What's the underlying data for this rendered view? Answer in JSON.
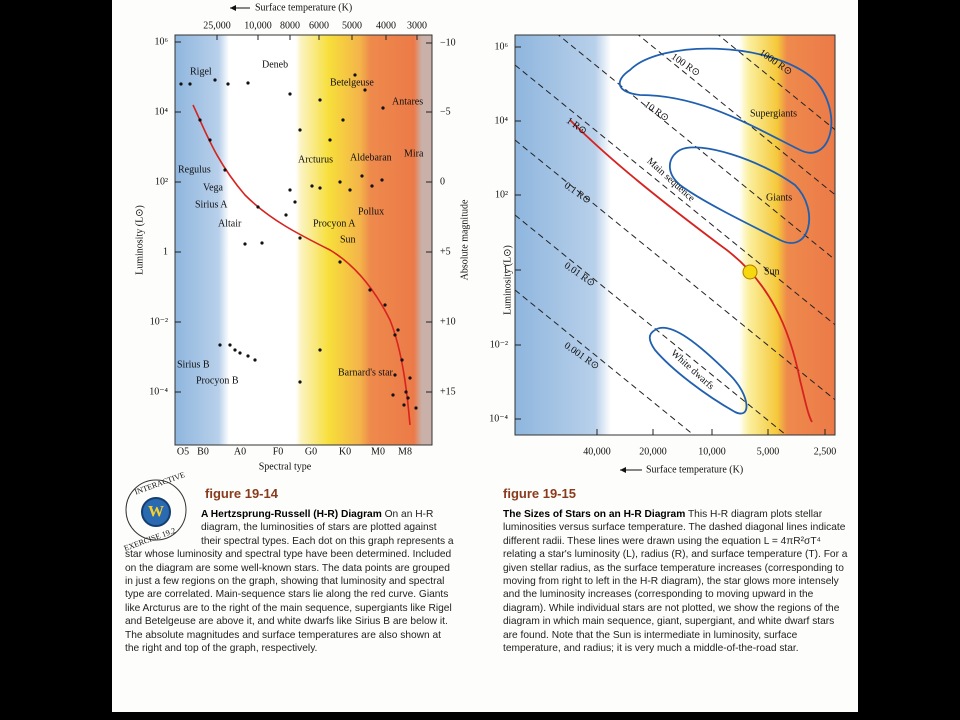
{
  "figure_19_14": {
    "top_axis_label": "Surface temperature (K)",
    "top_ticks": [
      "25,000",
      "10,000",
      "8000",
      "6000",
      "5000",
      "4000",
      "3000"
    ],
    "left_ticks": [
      "10⁶",
      "10⁴",
      "10²",
      "1",
      "10⁻²",
      "10⁻⁴"
    ],
    "left_axis_label": "Luminosity (L⊙)",
    "right_ticks": [
      "−10",
      "−5",
      "0",
      "+5",
      "+10",
      "+15"
    ],
    "right_axis_label": "Absolute magnitude",
    "bottom_ticks": [
      "O5",
      "B0",
      "A0",
      "F0",
      "G0",
      "K0",
      "M0",
      "M8"
    ],
    "bottom_axis_label": "Spectral type",
    "star_labels": [
      "Rigel",
      "Deneb",
      "Betelgeuse",
      "Antares",
      "Mira",
      "Aldebaran",
      "Arcturus",
      "Pollux",
      "Regulus",
      "Vega",
      "Sirius A",
      "Altair",
      "Procyon A",
      "Sun",
      "Sirius B",
      "Procyon B",
      "Barnard's star"
    ],
    "badge": {
      "top": "INTERACTIVE",
      "bottom": "EXERCISE 19.2"
    },
    "caption": {
      "number": "figure 19-14",
      "title": "A Hertzsprung-Russell (H-R) Diagram",
      "text": "On an H-R diagram, the luminosities of stars are plotted against their spectral types. Each dot on this graph represents a star whose luminosity and spectral type have been determined. Included on the diagram are some well-known stars. The data points are grouped in just a few regions on the graph, showing that luminosity and spectral type are correlated. Main-sequence stars lie along the red curve. Giants like Arcturus are to the right of the main sequence, supergiants like Rigel and Betelgeuse are above it, and white dwarfs like Sirius B are below it. The absolute magnitudes and surface temperatures are also shown at the right and top of the graph, respectively."
    }
  },
  "figure_19_15": {
    "left_ticks": [
      "10⁶",
      "10⁴",
      "10²",
      "1",
      "10⁻²",
      "10⁻⁴"
    ],
    "left_axis_label": "Luminosity (L⊙)",
    "bottom_ticks": [
      "40,000",
      "20,000",
      "10,000",
      "5,000",
      "2,500"
    ],
    "bottom_axis_label": "Surface temperature (K)",
    "radius_labels": [
      "1000 R⊙",
      "100 R⊙",
      "10 R⊙",
      "1 R⊙",
      "0.1 R⊙",
      "0.01 R⊙",
      "0.001 R⊙"
    ],
    "region_labels": [
      "Supergiants",
      "Giants",
      "Main sequence",
      "White dwarfs",
      "Sun"
    ],
    "caption": {
      "number": "figure 19-15",
      "title": "The Sizes of Stars on an H-R Diagram",
      "text": "This H-R diagram plots stellar luminosities versus surface temperature. The dashed diagonal lines indicate different radii. These lines were drawn using the equation L = 4πR²σT⁴ relating a star's luminosity (L), radius (R), and surface temperature (T). For a given stellar radius, as the surface temperature increases (corresponding to moving from right to left in the H-R diagram), the star glows more intensely and the luminosity increases (corresponding to moving upward in the diagram). While individual stars are not plotted, we show the regions of the diagram in which main sequence, giant, supergiant, and white dwarf stars are found. Note that the Sun is intermediate in luminosity, surface temperature, and radius; it is very much a middle-of-the-road star."
    }
  }
}
